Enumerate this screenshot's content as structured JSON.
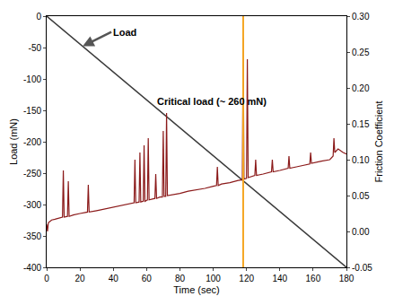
{
  "chart_data": {
    "type": "line",
    "xlabel": "Time (sec)",
    "ylabel": "Load (mN)",
    "y2label": "Friction Coefficient",
    "xlim": [
      0,
      180
    ],
    "xticks": [
      0,
      20,
      40,
      60,
      80,
      100,
      120,
      140,
      160,
      180
    ],
    "ylim": [
      -400,
      0
    ],
    "yticks": [
      -400,
      -350,
      -300,
      -250,
      -200,
      -150,
      -100,
      -50,
      0
    ],
    "y2lim": [
      -0.05,
      0.3
    ],
    "y2ticks": [
      -0.05,
      {
        "value": 0,
        "label": "0.00"
      },
      0.05,
      {
        "value": 0.1,
        "label": "0.10"
      },
      0.15,
      {
        "value": 0.2,
        "label": "0.20"
      },
      0.25,
      {
        "value": 0.3,
        "label": "0.30"
      }
    ],
    "grid": false,
    "series": [
      {
        "x": [
          0,
          180
        ],
        "values": [
          0,
          -400
        ],
        "color": "#3a3a3a",
        "axis": "y"
      },
      {
        "x": [
          0,
          0.5,
          1,
          3,
          5,
          8,
          9.5,
          10,
          10.5,
          12.5,
          13,
          13.5,
          16,
          20,
          24.5,
          25,
          25.5,
          30,
          36,
          40,
          45,
          50,
          52.5,
          53,
          53.5,
          55.5,
          56,
          56.5,
          58,
          58.5,
          59,
          60.5,
          61,
          61.5,
          64,
          65,
          65.5,
          66,
          68,
          69.5,
          70,
          70.5,
          71.5,
          72,
          72.5,
          75,
          80,
          85,
          90,
          95,
          100,
          102,
          102.5,
          103,
          105,
          110,
          115,
          117.5,
          118,
          118.5,
          120,
          120.5,
          121,
          122,
          125,
          125.5,
          126,
          130,
          135,
          135.5,
          136,
          140,
          145,
          145.5,
          146,
          150,
          155,
          158,
          158.5,
          159,
          165,
          170,
          172,
          172.5,
          173,
          175,
          178,
          180
        ],
        "values": [
          0.01,
          0.0,
          0.012,
          0.016,
          0.017,
          0.019,
          0.02,
          0.085,
          0.02,
          0.021,
          0.07,
          0.021,
          0.023,
          0.025,
          0.027,
          0.065,
          0.027,
          0.029,
          0.032,
          0.034,
          0.036,
          0.039,
          0.04,
          0.1,
          0.04,
          0.041,
          0.11,
          0.041,
          0.042,
          0.12,
          0.042,
          0.044,
          0.13,
          0.044,
          0.045,
          0.046,
          0.08,
          0.046,
          0.048,
          0.048,
          0.14,
          0.049,
          0.049,
          0.165,
          0.05,
          0.051,
          0.053,
          0.056,
          0.058,
          0.06,
          0.063,
          0.064,
          0.09,
          0.064,
          0.066,
          0.068,
          0.071,
          0.072,
          0.27,
          0.073,
          0.074,
          0.24,
          0.075,
          0.076,
          0.078,
          0.1,
          0.078,
          0.08,
          0.083,
          0.1,
          0.083,
          0.085,
          0.088,
          0.105,
          0.088,
          0.09,
          0.093,
          0.094,
          0.11,
          0.095,
          0.098,
          0.1,
          0.105,
          0.13,
          0.11,
          0.115,
          0.11,
          0.108
        ],
        "color": "#8b1a1a",
        "axis": "y2"
      }
    ],
    "annotations": [
      {
        "text": "Load"
      },
      {
        "text": "Critical load (~ 260 mN)"
      }
    ],
    "vline": {
      "x": 118,
      "color": "#f5a623"
    }
  }
}
